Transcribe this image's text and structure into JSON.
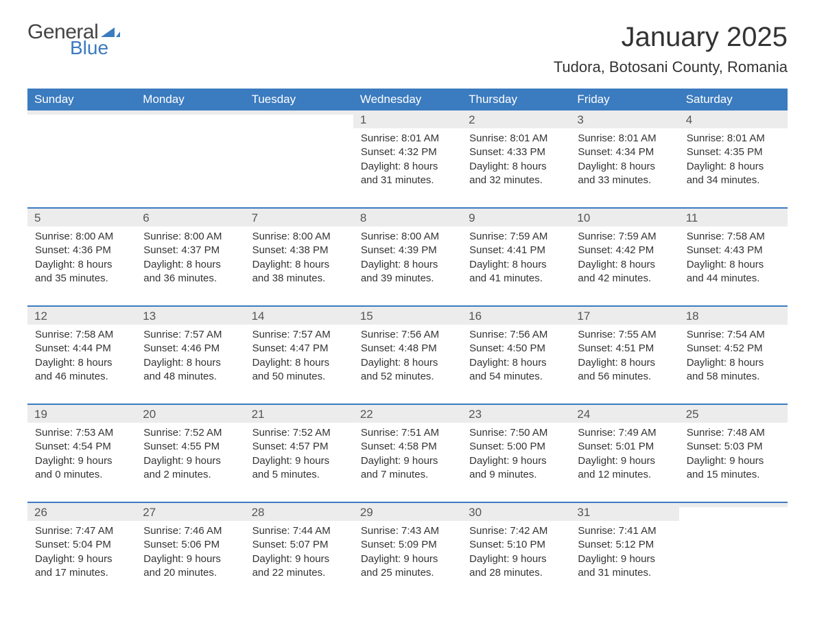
{
  "logo": {
    "word1": "General",
    "word2": "Blue",
    "word1_color": "#444444",
    "word2_color": "#3b7bbf",
    "swoosh_color": "#3b7bbf"
  },
  "title": "January 2025",
  "location": "Tudora, Botosani County, Romania",
  "colors": {
    "header_bg": "#3b7bbf",
    "header_text": "#ffffff",
    "daynum_bg": "#ececec",
    "text": "#333333",
    "row_border": "#3b7bbf",
    "page_bg": "#ffffff"
  },
  "fonts": {
    "title_size_pt": 30,
    "location_size_pt": 16,
    "header_size_pt": 13,
    "body_size_pt": 11
  },
  "day_headers": [
    "Sunday",
    "Monday",
    "Tuesday",
    "Wednesday",
    "Thursday",
    "Friday",
    "Saturday"
  ],
  "weeks": [
    [
      null,
      null,
      null,
      {
        "n": "1",
        "sunrise": "8:01 AM",
        "sunset": "4:32 PM",
        "daylight": "8 hours and 31 minutes."
      },
      {
        "n": "2",
        "sunrise": "8:01 AM",
        "sunset": "4:33 PM",
        "daylight": "8 hours and 32 minutes."
      },
      {
        "n": "3",
        "sunrise": "8:01 AM",
        "sunset": "4:34 PM",
        "daylight": "8 hours and 33 minutes."
      },
      {
        "n": "4",
        "sunrise": "8:01 AM",
        "sunset": "4:35 PM",
        "daylight": "8 hours and 34 minutes."
      }
    ],
    [
      {
        "n": "5",
        "sunrise": "8:00 AM",
        "sunset": "4:36 PM",
        "daylight": "8 hours and 35 minutes."
      },
      {
        "n": "6",
        "sunrise": "8:00 AM",
        "sunset": "4:37 PM",
        "daylight": "8 hours and 36 minutes."
      },
      {
        "n": "7",
        "sunrise": "8:00 AM",
        "sunset": "4:38 PM",
        "daylight": "8 hours and 38 minutes."
      },
      {
        "n": "8",
        "sunrise": "8:00 AM",
        "sunset": "4:39 PM",
        "daylight": "8 hours and 39 minutes."
      },
      {
        "n": "9",
        "sunrise": "7:59 AM",
        "sunset": "4:41 PM",
        "daylight": "8 hours and 41 minutes."
      },
      {
        "n": "10",
        "sunrise": "7:59 AM",
        "sunset": "4:42 PM",
        "daylight": "8 hours and 42 minutes."
      },
      {
        "n": "11",
        "sunrise": "7:58 AM",
        "sunset": "4:43 PM",
        "daylight": "8 hours and 44 minutes."
      }
    ],
    [
      {
        "n": "12",
        "sunrise": "7:58 AM",
        "sunset": "4:44 PM",
        "daylight": "8 hours and 46 minutes."
      },
      {
        "n": "13",
        "sunrise": "7:57 AM",
        "sunset": "4:46 PM",
        "daylight": "8 hours and 48 minutes."
      },
      {
        "n": "14",
        "sunrise": "7:57 AM",
        "sunset": "4:47 PM",
        "daylight": "8 hours and 50 minutes."
      },
      {
        "n": "15",
        "sunrise": "7:56 AM",
        "sunset": "4:48 PM",
        "daylight": "8 hours and 52 minutes."
      },
      {
        "n": "16",
        "sunrise": "7:56 AM",
        "sunset": "4:50 PM",
        "daylight": "8 hours and 54 minutes."
      },
      {
        "n": "17",
        "sunrise": "7:55 AM",
        "sunset": "4:51 PM",
        "daylight": "8 hours and 56 minutes."
      },
      {
        "n": "18",
        "sunrise": "7:54 AM",
        "sunset": "4:52 PM",
        "daylight": "8 hours and 58 minutes."
      }
    ],
    [
      {
        "n": "19",
        "sunrise": "7:53 AM",
        "sunset": "4:54 PM",
        "daylight": "9 hours and 0 minutes."
      },
      {
        "n": "20",
        "sunrise": "7:52 AM",
        "sunset": "4:55 PM",
        "daylight": "9 hours and 2 minutes."
      },
      {
        "n": "21",
        "sunrise": "7:52 AM",
        "sunset": "4:57 PM",
        "daylight": "9 hours and 5 minutes."
      },
      {
        "n": "22",
        "sunrise": "7:51 AM",
        "sunset": "4:58 PM",
        "daylight": "9 hours and 7 minutes."
      },
      {
        "n": "23",
        "sunrise": "7:50 AM",
        "sunset": "5:00 PM",
        "daylight": "9 hours and 9 minutes."
      },
      {
        "n": "24",
        "sunrise": "7:49 AM",
        "sunset": "5:01 PM",
        "daylight": "9 hours and 12 minutes."
      },
      {
        "n": "25",
        "sunrise": "7:48 AM",
        "sunset": "5:03 PM",
        "daylight": "9 hours and 15 minutes."
      }
    ],
    [
      {
        "n": "26",
        "sunrise": "7:47 AM",
        "sunset": "5:04 PM",
        "daylight": "9 hours and 17 minutes."
      },
      {
        "n": "27",
        "sunrise": "7:46 AM",
        "sunset": "5:06 PM",
        "daylight": "9 hours and 20 minutes."
      },
      {
        "n": "28",
        "sunrise": "7:44 AM",
        "sunset": "5:07 PM",
        "daylight": "9 hours and 22 minutes."
      },
      {
        "n": "29",
        "sunrise": "7:43 AM",
        "sunset": "5:09 PM",
        "daylight": "9 hours and 25 minutes."
      },
      {
        "n": "30",
        "sunrise": "7:42 AM",
        "sunset": "5:10 PM",
        "daylight": "9 hours and 28 minutes."
      },
      {
        "n": "31",
        "sunrise": "7:41 AM",
        "sunset": "5:12 PM",
        "daylight": "9 hours and 31 minutes."
      },
      null
    ]
  ],
  "labels": {
    "sunrise_prefix": "Sunrise: ",
    "sunset_prefix": "Sunset: ",
    "daylight_prefix": "Daylight: "
  }
}
